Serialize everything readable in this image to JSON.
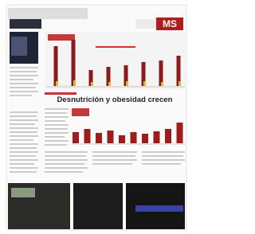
{
  "header": {
    "section": "MS"
  },
  "article": {
    "headline": "Desnutrición y obesidad crecen"
  },
  "charts": [
    {
      "type": "bar",
      "series": [
        {
          "color": "#8b1a1a",
          "values": [
            50,
            58,
            20,
            24,
            26,
            30,
            32,
            38
          ]
        },
        {
          "color": "#e0b43a",
          "values": [
            6,
            7,
            5,
            5,
            6,
            6,
            5,
            6
          ]
        }
      ]
    },
    {
      "type": "bar",
      "series": [
        {
          "color": "#a01c1c",
          "values": [
            14,
            18,
            13,
            16,
            10,
            14,
            12,
            15,
            18,
            26
          ]
        }
      ]
    }
  ]
}
